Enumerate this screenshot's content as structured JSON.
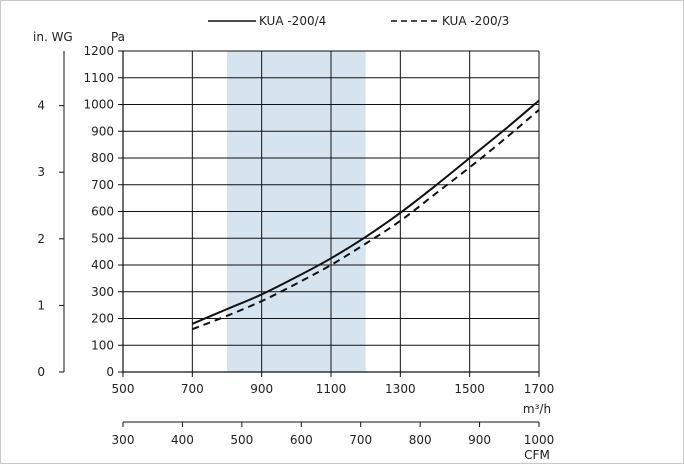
{
  "chart_data": {
    "type": "line",
    "legend": {
      "placement": "top",
      "entries": [
        {
          "label": "KUA  -200/4",
          "style": "solid"
        },
        {
          "label": "KUA  -200/3",
          "style": "dashed"
        }
      ]
    },
    "x": {
      "label": "m³/h",
      "range": [
        500,
        1700
      ],
      "ticks": [
        500,
        700,
        900,
        1100,
        1300,
        1500,
        1700
      ],
      "tick_labels": [
        "500",
        "700",
        "900",
        "1100",
        "1300",
        "1500",
        "1700"
      ]
    },
    "x2": {
      "label": "CFM",
      "range": [
        300,
        1000
      ],
      "ticks": [
        300,
        400,
        500,
        600,
        700,
        800,
        900,
        1000
      ],
      "tick_labels": [
        "300",
        "400",
        "500",
        "600",
        "700",
        "800",
        "900",
        "1000"
      ]
    },
    "y": {
      "label": "Pa",
      "range": [
        0,
        1200
      ],
      "ticks": [
        0,
        100,
        200,
        300,
        400,
        500,
        600,
        700,
        800,
        900,
        1000,
        1100,
        1200
      ],
      "tick_labels": [
        "0",
        "100",
        "200",
        "300",
        "400",
        "500",
        "600",
        "700",
        "800",
        "900",
        "1000",
        "1100",
        "1200"
      ]
    },
    "y2": {
      "label": "in. WG",
      "range": [
        0,
        4.82
      ],
      "ticks": [
        0,
        1,
        2,
        3,
        4
      ],
      "tick_labels": [
        "0",
        "1",
        "2",
        "3",
        "4"
      ]
    },
    "shaded_region": {
      "x": [
        800,
        1200
      ],
      "color": "#d6e4f0"
    },
    "grid": true,
    "series": [
      {
        "name": "KUA  -200/4",
        "style": "solid",
        "color": "#111111",
        "x": [
          700,
          800,
          900,
          1000,
          1100,
          1200,
          1300,
          1400,
          1500,
          1600,
          1700
        ],
        "y": [
          180,
          235,
          290,
          355,
          425,
          505,
          595,
          695,
          800,
          905,
          1015
        ]
      },
      {
        "name": "KUA  -200/3",
        "style": "dashed",
        "color": "#111111",
        "x": [
          700,
          800,
          900,
          1000,
          1100,
          1200,
          1300,
          1400,
          1500,
          1600,
          1700
        ],
        "y": [
          160,
          210,
          265,
          330,
          400,
          480,
          565,
          665,
          765,
          870,
          980
        ]
      }
    ]
  }
}
